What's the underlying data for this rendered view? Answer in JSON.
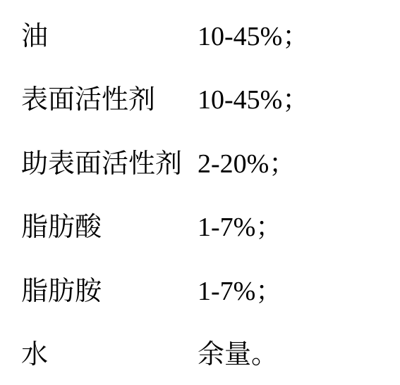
{
  "rows": [
    {
      "label": "油",
      "value": "10-45%；"
    },
    {
      "label": "表面活性剂",
      "value": "10-45%；"
    },
    {
      "label": "助表面活性剂",
      "value": "2-20%；"
    },
    {
      "label": "脂肪酸",
      "value": "1-7%；"
    },
    {
      "label": "脂肪胺",
      "value": "1-7%；"
    },
    {
      "label": "水",
      "value": "余量。"
    }
  ]
}
